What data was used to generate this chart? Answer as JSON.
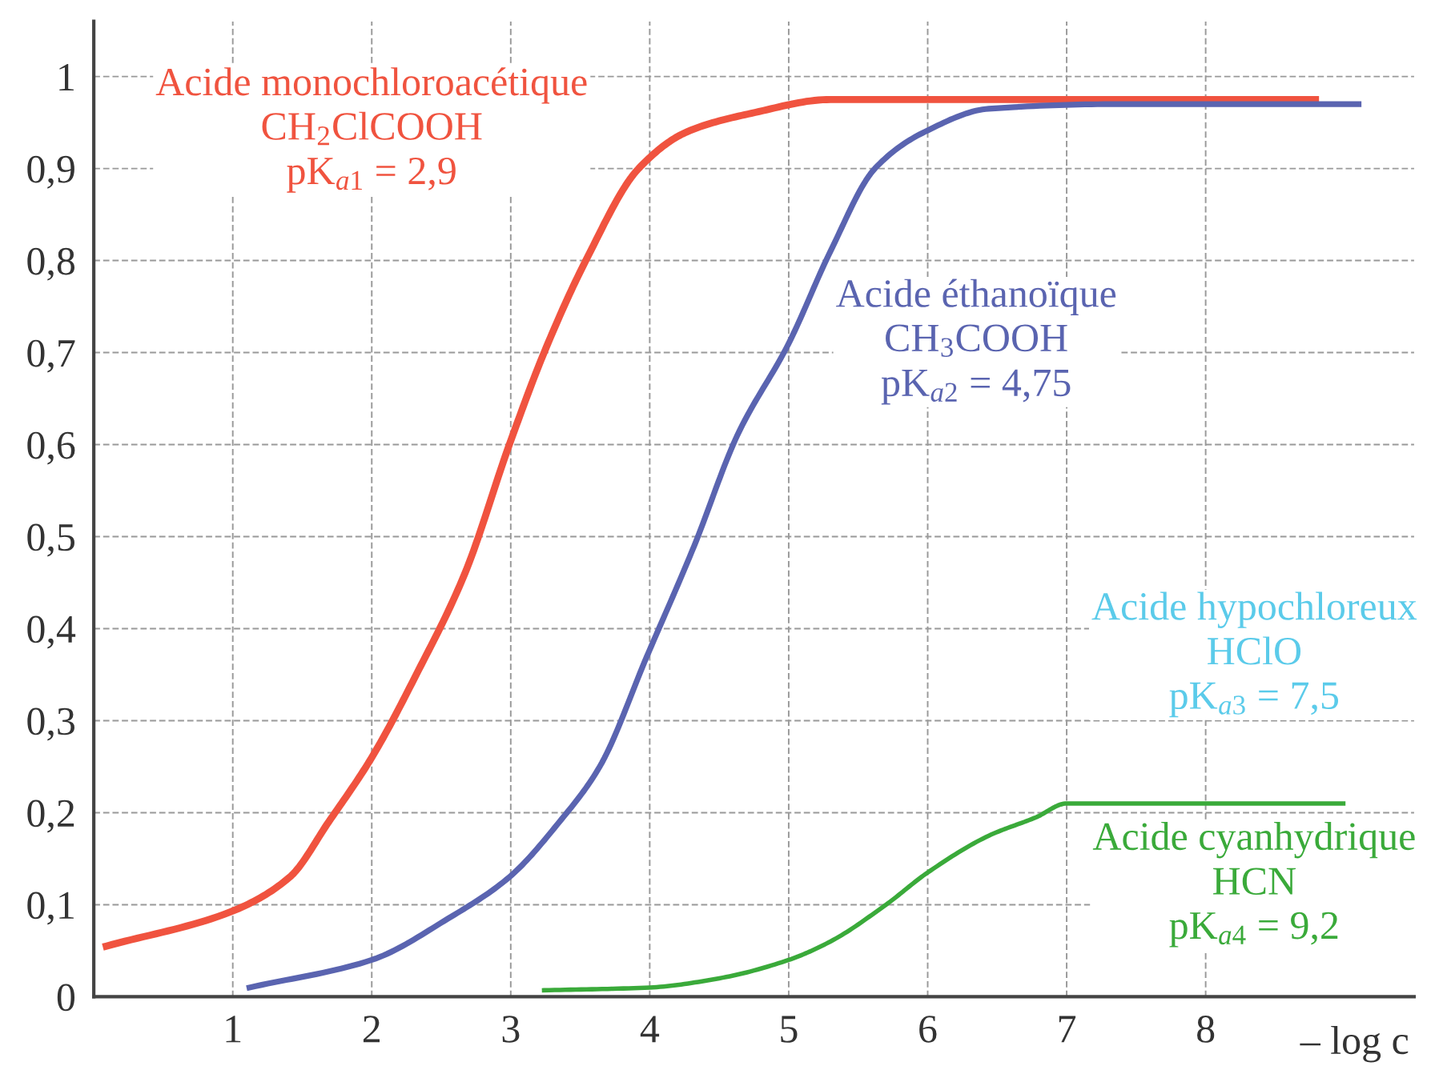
{
  "chart_data": {
    "type": "line",
    "xlabel": "– log c",
    "xlim": [
      0,
      9.5
    ],
    "ylim": [
      0,
      1.06
    ],
    "xticks": [
      1,
      2,
      3,
      4,
      5,
      6,
      7,
      8
    ],
    "yticks": [
      {
        "value": 0,
        "label": "0"
      },
      {
        "value": 0.1,
        "label": "0,1"
      },
      {
        "value": 0.2,
        "label": "0,2"
      },
      {
        "value": 0.3,
        "label": "0,3"
      },
      {
        "value": 0.4,
        "label": "0,4"
      },
      {
        "value": 0.5,
        "label": "0,5"
      },
      {
        "value": 0.6,
        "label": "0,6"
      },
      {
        "value": 0.7,
        "label": "0,7"
      },
      {
        "value": 0.8,
        "label": "0,8"
      },
      {
        "value": 0.9,
        "label": "0,9"
      },
      {
        "value": 1,
        "label": "1"
      }
    ],
    "grid": true,
    "legend": false,
    "marker": "none",
    "line_style": "solid",
    "series": [
      {
        "name": "Acide monochloroacétique\nCH$_{2}$ClCOOH\npK$_{a1}$ = 2,9",
        "color": "#f0533f",
        "x": [
          0.09,
          0.98,
          1.41,
          1.69,
          2.0,
          2.32,
          2.67,
          2.99,
          3.24,
          3.54,
          3.92,
          4.27,
          4.73,
          5.3,
          8.79
        ],
        "values": [
          0.055,
          0.092,
          0.13,
          0.19,
          0.26,
          0.35,
          0.46,
          0.6,
          0.7,
          0.8,
          0.9,
          0.94,
          0.96,
          0.975,
          0.975
        ]
      },
      {
        "name": "Acide éthanoïque\nCH$_{3}$COOH\npK$_{a2}$ = 4,75",
        "color": "#5a64b0",
        "x": [
          1.12,
          2.0,
          2.55,
          2.99,
          3.35,
          3.64,
          3.98,
          4.32,
          4.63,
          5.0,
          5.3,
          5.62,
          5.98,
          6.44,
          7.36,
          9.1
        ],
        "values": [
          0.01,
          0.04,
          0.085,
          0.13,
          0.19,
          0.25,
          0.37,
          0.49,
          0.61,
          0.71,
          0.81,
          0.9,
          0.94,
          0.965,
          0.97,
          0.97
        ]
      },
      {
        "name": "Acide hypochloreux\nHClO\npK$_{a3}$ = 7,5",
        "color": "#5bcbea"
      },
      {
        "name": "Acide cyanhydrique\nHCN\npK$_{a4}$ = 9,2",
        "color": "#3aaa3a",
        "x": [
          3.24,
          4.0,
          4.5,
          5.0,
          5.3,
          5.7,
          6.0,
          6.44,
          6.78,
          7.0,
          7.36,
          8.99
        ],
        "values": [
          0.007,
          0.01,
          0.02,
          0.04,
          0.06,
          0.1,
          0.135,
          0.175,
          0.195,
          0.21,
          0.21,
          0.21
        ]
      }
    ]
  }
}
